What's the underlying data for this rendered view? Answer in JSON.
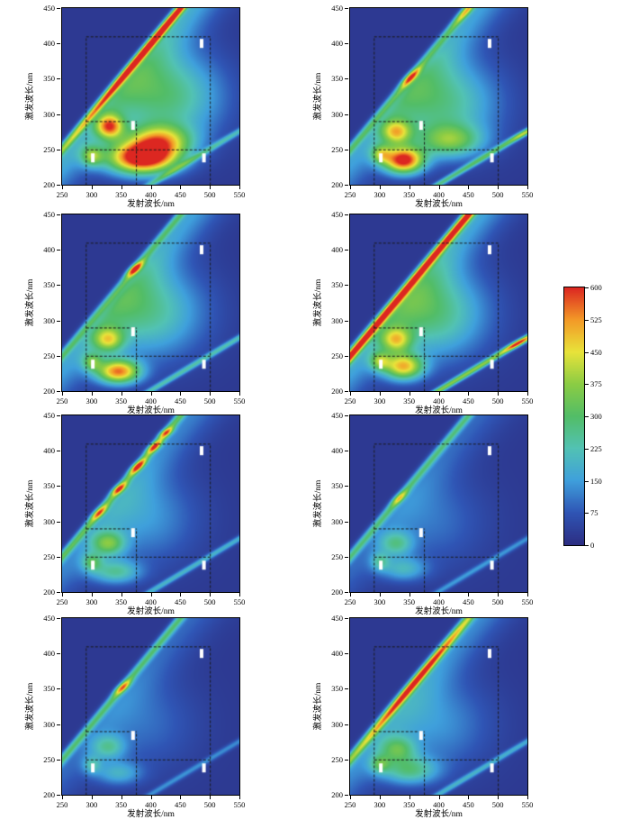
{
  "figure": {
    "kind": "fluorescence-eem-grid",
    "rows": 4,
    "cols": 2
  },
  "chart_data": {
    "type": "heatmap",
    "description": "Eight excitation-emission matrix (EEM) fluorescence contour plots arranged in a 4x2 grid, with diagonal Rayleigh scattering ridges, regional integration boundaries (dashed) and a shared intensity colorbar.",
    "axes": {
      "x_label": "发射波长/nm",
      "y_label": "激发波长/nm",
      "x_range": [
        250,
        550
      ],
      "y_range": [
        200,
        450
      ],
      "x_ticks": [
        250,
        300,
        350,
        400,
        450,
        500,
        550
      ],
      "y_ticks": [
        200,
        250,
        300,
        350,
        400,
        450
      ]
    },
    "colorbar": {
      "min": 0,
      "max": 600,
      "ticks": [
        0,
        75,
        150,
        225,
        300,
        375,
        450,
        525,
        600
      ],
      "stops": [
        [
          0,
          "#2c2e83"
        ],
        [
          75,
          "#2f55b5"
        ],
        [
          150,
          "#3fa0dc"
        ],
        [
          225,
          "#52c2b4"
        ],
        [
          300,
          "#52bd67"
        ],
        [
          375,
          "#8bcc44"
        ],
        [
          450,
          "#e8e33a"
        ],
        [
          525,
          "#f39a27"
        ],
        [
          600,
          "#dc2721"
        ]
      ]
    },
    "regions": {
      "segments": [
        {
          "x1": 290,
          "y1": 200,
          "x2": 290,
          "y2": 410
        },
        {
          "x1": 290,
          "y1": 410,
          "x2": 500,
          "y2": 410
        },
        {
          "x1": 500,
          "y1": 200,
          "x2": 500,
          "y2": 410
        },
        {
          "x1": 290,
          "y1": 250,
          "x2": 500,
          "y2": 250
        },
        {
          "x1": 290,
          "y1": 290,
          "x2": 375,
          "y2": 290
        },
        {
          "x1": 375,
          "y1": 200,
          "x2": 375,
          "y2": 290
        }
      ],
      "labels": [
        {
          "text": "II",
          "em": 302,
          "ex": 238
        },
        {
          "text": "III",
          "em": 370,
          "ex": 284
        },
        {
          "text": "IV",
          "em": 486,
          "ex": 400
        },
        {
          "text": "V",
          "em": 490,
          "ex": 238
        }
      ]
    },
    "subplots": [
      {
        "position": "row 1, left",
        "background": 22,
        "rayleigh": {
          "base": 260,
          "width": 6.5,
          "shoulder": 170,
          "hotspots": [
            {
              "ex": 400,
              "amp": 480,
              "s": 85
            }
          ]
        },
        "second_order": {
          "amp": 170,
          "width": 7,
          "hotspots": []
        },
        "peaks": [
          {
            "em": 385,
            "ex": 237,
            "amp": 620,
            "sx": 42,
            "sy": 16
          },
          {
            "em": 415,
            "ex": 262,
            "amp": 360,
            "sx": 38,
            "sy": 16
          },
          {
            "em": 330,
            "ex": 282,
            "amp": 420,
            "sx": 16,
            "sy": 12
          },
          {
            "em": 425,
            "ex": 325,
            "amp": 260,
            "sx": 65,
            "sy": 45
          },
          {
            "em": 300,
            "ex": 240,
            "amp": 240,
            "sx": 13,
            "sy": 10
          }
        ]
      },
      {
        "position": "row 1, right",
        "background": 22,
        "rayleigh": {
          "base": 270,
          "width": 6.5,
          "shoulder": 150,
          "hotspots": [
            {
              "ex": 352,
              "amp": 330,
              "s": 9
            },
            {
              "ex": 447,
              "amp": 200,
              "s": 12
            }
          ]
        },
        "second_order": {
          "amp": 240,
          "width": 7,
          "hotspots": [
            {
              "ex": 272,
              "amp": 150,
              "s": 8
            }
          ]
        },
        "peaks": [
          {
            "em": 340,
            "ex": 234,
            "amp": 580,
            "sx": 24,
            "sy": 13
          },
          {
            "em": 328,
            "ex": 274,
            "amp": 330,
            "sx": 18,
            "sy": 12
          },
          {
            "em": 405,
            "ex": 315,
            "amp": 240,
            "sx": 65,
            "sy": 45
          },
          {
            "em": 420,
            "ex": 262,
            "amp": 250,
            "sx": 38,
            "sy": 16
          },
          {
            "em": 302,
            "ex": 243,
            "amp": 240,
            "sx": 12,
            "sy": 9
          }
        ]
      },
      {
        "position": "row 2, left",
        "background": 22,
        "rayleigh": {
          "base": 265,
          "width": 6.5,
          "shoulder": 150,
          "hotspots": [
            {
              "ex": 373,
              "amp": 400,
              "s": 7
            }
          ]
        },
        "second_order": {
          "amp": 190,
          "width": 7,
          "hotspots": []
        },
        "peaks": [
          {
            "em": 345,
            "ex": 227,
            "amp": 500,
            "sx": 26,
            "sy": 12
          },
          {
            "em": 328,
            "ex": 272,
            "amp": 300,
            "sx": 18,
            "sy": 12
          },
          {
            "em": 395,
            "ex": 312,
            "amp": 230,
            "sx": 65,
            "sy": 45
          },
          {
            "em": 300,
            "ex": 241,
            "amp": 210,
            "sx": 12,
            "sy": 9
          }
        ]
      },
      {
        "position": "row 2, right",
        "background": 22,
        "rayleigh": {
          "base": 680,
          "width": 7,
          "shoulder": 160,
          "hotspots": []
        },
        "second_order": {
          "amp": 330,
          "width": 7,
          "hotspots": [
            {
              "ex": 267,
              "amp": 280,
              "s": 7
            }
          ]
        },
        "peaks": [
          {
            "em": 340,
            "ex": 234,
            "amp": 430,
            "sx": 24,
            "sy": 13
          },
          {
            "em": 328,
            "ex": 272,
            "amp": 300,
            "sx": 18,
            "sy": 12
          },
          {
            "em": 392,
            "ex": 310,
            "amp": 250,
            "sx": 62,
            "sy": 45
          },
          {
            "em": 300,
            "ex": 242,
            "amp": 230,
            "sx": 12,
            "sy": 9
          }
        ]
      },
      {
        "position": "row 3, left",
        "background": 22,
        "rayleigh": {
          "base": 290,
          "width": 6.5,
          "shoulder": 110,
          "hotspots": [
            {
              "ex": 312,
              "amp": 280,
              "s": 7
            },
            {
              "ex": 346,
              "amp": 330,
              "s": 6
            },
            {
              "ex": 378,
              "amp": 360,
              "s": 7
            },
            {
              "ex": 406,
              "amp": 330,
              "s": 6
            },
            {
              "ex": 426,
              "amp": 290,
              "s": 5
            }
          ]
        },
        "second_order": {
          "amp": 160,
          "width": 7,
          "hotspots": []
        },
        "peaks": [
          {
            "em": 328,
            "ex": 268,
            "amp": 260,
            "sx": 20,
            "sy": 12
          },
          {
            "em": 340,
            "ex": 228,
            "amp": 210,
            "sx": 30,
            "sy": 12
          },
          {
            "em": 300,
            "ex": 242,
            "amp": 190,
            "sx": 12,
            "sy": 9
          },
          {
            "em": 392,
            "ex": 305,
            "amp": 120,
            "sx": 60,
            "sy": 45
          }
        ]
      },
      {
        "position": "row 3, right",
        "background": 22,
        "rayleigh": {
          "base": 255,
          "width": 6.5,
          "shoulder": 80,
          "hotspots": [
            {
              "ex": 333,
              "amp": 210,
              "s": 7
            }
          ]
        },
        "second_order": {
          "amp": 115,
          "width": 7,
          "hotspots": []
        },
        "peaks": [
          {
            "em": 328,
            "ex": 268,
            "amp": 185,
            "sx": 20,
            "sy": 12
          },
          {
            "em": 340,
            "ex": 232,
            "amp": 160,
            "sx": 28,
            "sy": 12
          },
          {
            "em": 300,
            "ex": 243,
            "amp": 150,
            "sx": 11,
            "sy": 9
          },
          {
            "em": 392,
            "ex": 300,
            "amp": 80,
            "sx": 60,
            "sy": 45
          }
        ]
      },
      {
        "position": "row 4, left",
        "background": 22,
        "rayleigh": {
          "base": 265,
          "width": 6.5,
          "shoulder": 80,
          "hotspots": [
            {
              "ex": 352,
              "amp": 290,
              "s": 7
            }
          ]
        },
        "second_order": {
          "amp": 105,
          "width": 7,
          "hotspots": []
        },
        "peaks": [
          {
            "em": 328,
            "ex": 267,
            "amp": 175,
            "sx": 20,
            "sy": 12
          },
          {
            "em": 345,
            "ex": 230,
            "amp": 150,
            "sx": 28,
            "sy": 12
          },
          {
            "em": 300,
            "ex": 242,
            "amp": 140,
            "sx": 11,
            "sy": 9
          },
          {
            "em": 392,
            "ex": 300,
            "amp": 75,
            "sx": 60,
            "sy": 45
          }
        ]
      },
      {
        "position": "row 4, right",
        "background": 22,
        "rayleigh": {
          "base": 310,
          "width": 7,
          "shoulder": 120,
          "hotspots": [
            {
              "ex": 360,
              "amp": 340,
              "s": 55
            }
          ]
        },
        "second_order": {
          "amp": 150,
          "width": 7,
          "hotspots": []
        },
        "peaks": [
          {
            "em": 330,
            "ex": 264,
            "amp": 215,
            "sx": 22,
            "sy": 13
          },
          {
            "em": 350,
            "ex": 234,
            "amp": 225,
            "sx": 34,
            "sy": 14
          },
          {
            "em": 300,
            "ex": 243,
            "amp": 175,
            "sx": 12,
            "sy": 9
          },
          {
            "em": 398,
            "ex": 300,
            "amp": 115,
            "sx": 62,
            "sy": 45
          }
        ]
      }
    ]
  }
}
